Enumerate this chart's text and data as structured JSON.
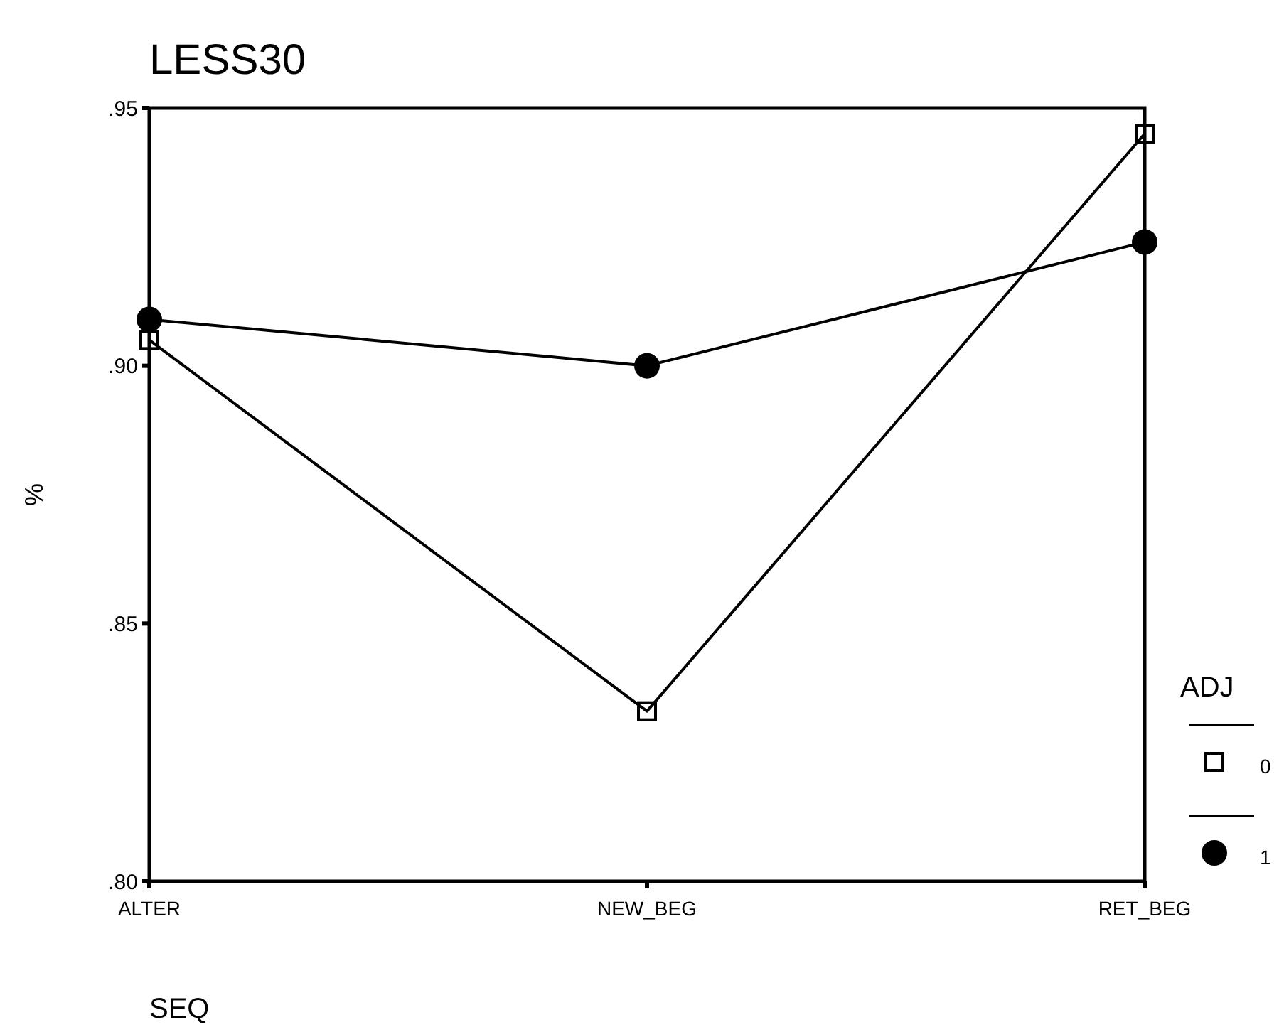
{
  "chart_data": {
    "type": "line",
    "title": "LESS30",
    "xlabel": "SEQ",
    "ylabel": "%",
    "legend_title": "ADJ",
    "categories": [
      "ALTER",
      "NEW_BEG",
      "RET_BEG"
    ],
    "series": [
      {
        "name": "0",
        "color": "#000000",
        "marker": "square",
        "values": [
          0.905,
          0.833,
          0.945
        ]
      },
      {
        "name": "1",
        "color": "#000000",
        "marker": "circle",
        "values": [
          0.909,
          0.9,
          0.924
        ]
      }
    ],
    "ylim": [
      0.8,
      0.95
    ],
    "yticks": [
      {
        "value": 0.8,
        "label": ".80"
      },
      {
        "value": 0.85,
        "label": ".85"
      },
      {
        "value": 0.9,
        "label": ".90"
      },
      {
        "value": 0.95,
        "label": ".95"
      }
    ],
    "grid": false,
    "legend": "right",
    "line_style": "solid"
  }
}
